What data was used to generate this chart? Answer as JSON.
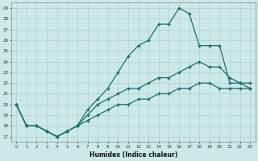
{
  "xlabel": "Humidex (Indice chaleur)",
  "bg_color": "#cce8e8",
  "line_color": "#1a6e6e",
  "grid_color": "#aad0d0",
  "xlim": [
    -0.5,
    23.5
  ],
  "ylim": [
    16.5,
    29.5
  ],
  "xticks": [
    0,
    1,
    2,
    3,
    4,
    5,
    6,
    7,
    8,
    9,
    10,
    11,
    12,
    13,
    14,
    15,
    16,
    17,
    18,
    19,
    20,
    21,
    22,
    23
  ],
  "yticks": [
    17,
    18,
    19,
    20,
    21,
    22,
    23,
    24,
    25,
    26,
    27,
    28,
    29
  ],
  "line1_x": [
    0,
    1,
    2,
    3,
    4,
    5,
    6,
    7,
    8,
    9,
    10,
    11,
    12,
    13,
    14,
    15,
    16,
    17,
    18,
    19,
    20,
    21,
    22,
    23
  ],
  "line1_y": [
    20.0,
    18.0,
    18.0,
    17.5,
    17.0,
    17.5,
    18.0,
    19.5,
    20.5,
    21.5,
    23.0,
    24.5,
    25.5,
    26.0,
    27.5,
    27.5,
    29.0,
    28.5,
    25.5,
    25.5,
    25.5,
    22.0,
    22.0,
    21.5
  ],
  "line2_x": [
    0,
    1,
    2,
    3,
    4,
    5,
    6,
    7,
    8,
    9,
    10,
    11,
    12,
    13,
    14,
    15,
    16,
    17,
    18,
    19,
    20,
    21,
    22,
    23
  ],
  "line2_y": [
    20.0,
    18.0,
    18.0,
    17.5,
    17.0,
    17.5,
    18.0,
    19.0,
    20.0,
    20.5,
    21.0,
    21.5,
    21.5,
    22.0,
    22.5,
    22.5,
    23.0,
    23.5,
    24.0,
    23.5,
    23.5,
    22.5,
    22.0,
    22.0
  ],
  "line3_x": [
    0,
    1,
    2,
    3,
    4,
    5,
    6,
    7,
    8,
    9,
    10,
    11,
    12,
    13,
    14,
    15,
    16,
    17,
    18,
    19,
    20,
    21,
    22,
    23
  ],
  "line3_y": [
    20.0,
    18.0,
    18.0,
    17.5,
    17.0,
    17.5,
    18.0,
    18.5,
    19.0,
    19.5,
    20.0,
    20.0,
    20.5,
    20.5,
    21.0,
    21.0,
    21.5,
    21.5,
    22.0,
    22.0,
    21.5,
    21.5,
    21.5,
    21.5
  ]
}
